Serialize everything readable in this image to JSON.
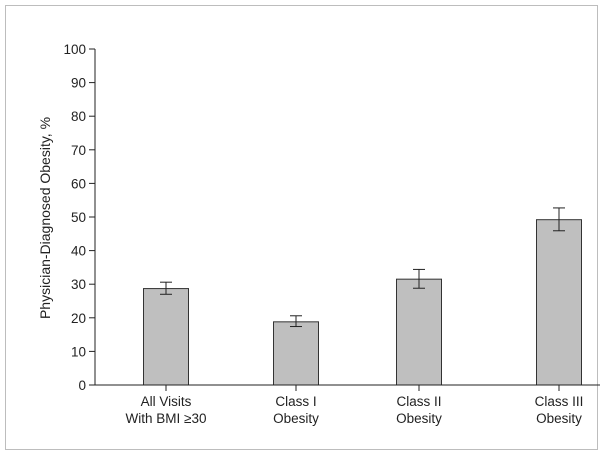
{
  "chart_data": {
    "type": "bar",
    "title": "",
    "xlabel": "",
    "ylabel": "Physician-Diagnosed Obesity, %",
    "ylim": [
      0,
      100
    ],
    "yticks": [
      0,
      10,
      20,
      30,
      40,
      50,
      60,
      70,
      80,
      90,
      100
    ],
    "grid": false,
    "categories": [
      [
        "All Visits",
        "With BMI ≥30"
      ],
      [
        "Class I",
        "Obesity"
      ],
      [
        "Class II",
        "Obesity"
      ],
      [
        "Class III",
        "Obesity"
      ]
    ],
    "values": [
      28.7,
      18.8,
      31.5,
      49.2
    ],
    "error_low": [
      27.0,
      17.4,
      28.8,
      45.9
    ],
    "error_high": [
      30.6,
      20.6,
      34.4,
      52.7
    ],
    "bar_color": "#bfbfbf",
    "bar_edge_color": "#333333"
  }
}
